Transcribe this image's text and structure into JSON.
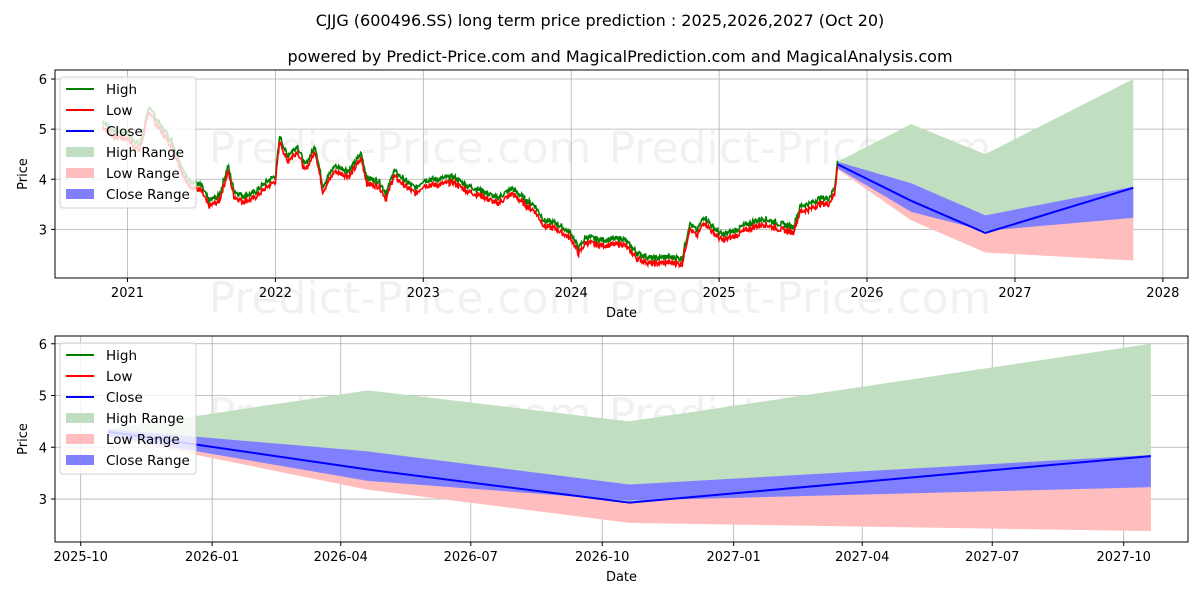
{
  "title": "CJJG (600496.SS) long term price prediction : 2025,2026,2027 (Oct 20)",
  "subtitle": "powered by Predict-Price.com and MagicalPrediction.com and MagicalAnalysis.com",
  "watermark": "Predict-Price.com",
  "colors": {
    "high": "#008000",
    "low": "#ff0000",
    "close": "#0000ff",
    "high_range": "#c0dfc0",
    "low_range": "#ffbdbd",
    "close_range": "#8080ff",
    "grid": "#b0b0b0"
  },
  "legend": [
    "High",
    "Low",
    "Close",
    "High Range",
    "Low Range",
    "Close Range"
  ],
  "chart_data": [
    {
      "type": "line",
      "name": "long-term",
      "xlabel": "Date",
      "ylabel": "Price",
      "xlim": [
        2020.51,
        2028.17
      ],
      "ylim": [
        2.03,
        6.18
      ],
      "grid": true,
      "legend_position": "top-left",
      "x_ticks": [
        {
          "v": 2021,
          "label": "2021"
        },
        {
          "v": 2022,
          "label": "2022"
        },
        {
          "v": 2023,
          "label": "2023"
        },
        {
          "v": 2024,
          "label": "2024"
        },
        {
          "v": 2025,
          "label": "2025"
        },
        {
          "v": 2026,
          "label": "2026"
        },
        {
          "v": 2027,
          "label": "2027"
        },
        {
          "v": 2028,
          "label": "2028"
        }
      ],
      "y_ticks": [
        {
          "v": 3,
          "label": "3"
        },
        {
          "v": 4,
          "label": "4"
        },
        {
          "v": 5,
          "label": "5"
        },
        {
          "v": 6,
          "label": "6"
        }
      ],
      "history": {
        "x": [
          2020.83,
          2020.9,
          2021.0,
          2021.08,
          2021.15,
          2021.2,
          2021.3,
          2021.4,
          2021.5,
          2021.55,
          2021.62,
          2021.68,
          2021.72,
          2021.78,
          2021.85,
          2021.95,
          2022.0,
          2022.03,
          2022.08,
          2022.15,
          2022.2,
          2022.27,
          2022.32,
          2022.4,
          2022.5,
          2022.58,
          2022.62,
          2022.7,
          2022.75,
          2022.8,
          2022.9,
          2022.95,
          2023.0,
          2023.1,
          2023.2,
          2023.3,
          2023.4,
          2023.5,
          2023.6,
          2023.7,
          2023.75,
          2023.82,
          2023.9,
          2024.0,
          2024.05,
          2024.1,
          2024.2,
          2024.35,
          2024.45,
          2024.55,
          2024.65,
          2024.75,
          2024.8,
          2024.85,
          2024.9,
          2024.95,
          2025.02,
          2025.1,
          2025.2,
          2025.3,
          2025.4,
          2025.5,
          2025.55,
          2025.62,
          2025.68,
          2025.74,
          2025.78,
          2025.8
        ],
        "close": [
          5.1,
          4.9,
          4.85,
          4.6,
          5.4,
          5.1,
          4.7,
          3.95,
          3.8,
          3.5,
          3.6,
          4.2,
          3.7,
          3.6,
          3.65,
          3.9,
          4.0,
          4.8,
          4.4,
          4.6,
          4.2,
          4.6,
          3.8,
          4.2,
          4.1,
          4.45,
          3.95,
          3.9,
          3.65,
          4.1,
          3.85,
          3.75,
          3.92,
          3.93,
          3.98,
          3.8,
          3.7,
          3.55,
          3.75,
          3.5,
          3.42,
          3.1,
          3.05,
          2.85,
          2.55,
          2.78,
          2.72,
          2.75,
          2.45,
          2.35,
          2.38,
          2.35,
          3.05,
          2.9,
          3.2,
          3.0,
          2.82,
          2.9,
          3.05,
          3.15,
          3.05,
          2.98,
          3.4,
          3.45,
          3.55,
          3.55,
          3.75,
          4.3
        ]
      },
      "prediction": {
        "dates": [
          "2025-10-20",
          "2026-04-20",
          "2026-10-20",
          "2027-10-20"
        ],
        "high": [
          4.35,
          5.1,
          4.5,
          6.0
        ],
        "close_upper": [
          4.35,
          3.92,
          3.28,
          3.85
        ],
        "close": [
          4.3,
          3.57,
          2.93,
          3.83
        ],
        "close_lower": [
          4.22,
          3.35,
          2.97,
          3.23
        ],
        "low": [
          4.2,
          3.18,
          2.54,
          2.38
        ]
      }
    },
    {
      "type": "line",
      "name": "prediction-zoom",
      "xlabel": "Date",
      "ylabel": "Price",
      "xlim": [
        "2025-09-13",
        "2027-11-15"
      ],
      "ylim": [
        2.17,
        6.15
      ],
      "grid": true,
      "legend_position": "top-left",
      "x_ticks": [
        {
          "v": "2025-10-01",
          "label": "2025-10"
        },
        {
          "v": "2026-01-01",
          "label": "2026-01"
        },
        {
          "v": "2026-04-01",
          "label": "2026-04"
        },
        {
          "v": "2026-07-01",
          "label": "2026-07"
        },
        {
          "v": "2026-10-01",
          "label": "2026-10"
        },
        {
          "v": "2027-01-01",
          "label": "2027-01"
        },
        {
          "v": "2027-04-01",
          "label": "2027-04"
        },
        {
          "v": "2027-07-01",
          "label": "2027-07"
        },
        {
          "v": "2027-10-01",
          "label": "2027-10"
        }
      ],
      "y_ticks": [
        {
          "v": 3,
          "label": "3"
        },
        {
          "v": 4,
          "label": "4"
        },
        {
          "v": 5,
          "label": "5"
        },
        {
          "v": 6,
          "label": "6"
        }
      ]
    }
  ]
}
